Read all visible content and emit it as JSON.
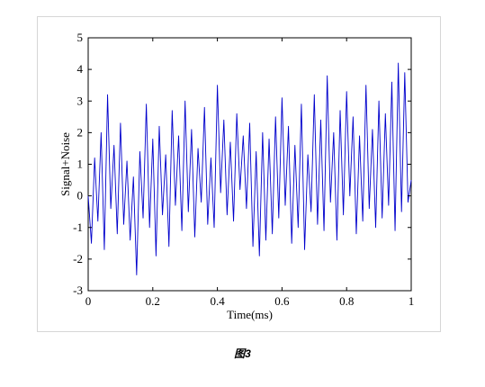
{
  "caption": "图3",
  "chart_data": {
    "type": "line",
    "title": "",
    "xlabel": "Time(ms)",
    "ylabel": "Signal+Noise",
    "xlim": [
      0,
      1
    ],
    "ylim": [
      -3,
      5
    ],
    "xticks": [
      "0",
      "0.2",
      "0.4",
      "0.6",
      "0.8",
      "1"
    ],
    "yticks": [
      "-3",
      "-2",
      "-1",
      "0",
      "1",
      "2",
      "3",
      "4",
      "5"
    ],
    "grid": false,
    "legend": "none",
    "line_color": "#0000cc",
    "series": [
      {
        "x": [
          0,
          0.01,
          0.02,
          0.03,
          0.04,
          0.05,
          0.06,
          0.07,
          0.08,
          0.09,
          0.1,
          0.11,
          0.12,
          0.13,
          0.14,
          0.15,
          0.16,
          0.17,
          0.18,
          0.19,
          0.2,
          0.21,
          0.22,
          0.23,
          0.24,
          0.25,
          0.26,
          0.27,
          0.28,
          0.29,
          0.3,
          0.31,
          0.32,
          0.33,
          0.34,
          0.35,
          0.36,
          0.37,
          0.38,
          0.39,
          0.4,
          0.41,
          0.42,
          0.43,
          0.44,
          0.45,
          0.46,
          0.47,
          0.48,
          0.49,
          0.5,
          0.51,
          0.52,
          0.53,
          0.54,
          0.55,
          0.56,
          0.57,
          0.58,
          0.59,
          0.6,
          0.61,
          0.62,
          0.63,
          0.64,
          0.65,
          0.66,
          0.67,
          0.68,
          0.69,
          0.7,
          0.71,
          0.72,
          0.73,
          0.74,
          0.75,
          0.76,
          0.77,
          0.78,
          0.79,
          0.8,
          0.81,
          0.82,
          0.83,
          0.84,
          0.85,
          0.86,
          0.87,
          0.88,
          0.89,
          0.9,
          0.91,
          0.92,
          0.93,
          0.94,
          0.95,
          0.96,
          0.97,
          0.98,
          0.99,
          1.0
        ],
        "values": [
          0.0,
          -1.5,
          1.2,
          -0.8,
          2.0,
          -1.7,
          3.2,
          -0.4,
          1.6,
          -1.2,
          2.3,
          -0.9,
          1.1,
          -1.4,
          0.6,
          -2.5,
          1.4,
          -0.7,
          2.9,
          -1.0,
          1.8,
          -1.9,
          2.2,
          -0.6,
          1.3,
          -1.6,
          2.7,
          -0.3,
          1.9,
          -1.1,
          3.0,
          -0.5,
          2.1,
          -1.3,
          1.5,
          -0.2,
          2.8,
          -0.9,
          1.2,
          -1.0,
          3.5,
          0.1,
          2.4,
          -0.6,
          1.7,
          -0.8,
          2.6,
          0.2,
          1.9,
          -0.4,
          2.3,
          -1.6,
          1.4,
          -1.9,
          2.0,
          -1.4,
          1.8,
          -1.2,
          2.5,
          -0.7,
          3.1,
          -0.3,
          2.2,
          -1.5,
          1.6,
          -1.0,
          2.9,
          -1.7,
          1.3,
          -0.5,
          3.2,
          -0.9,
          2.4,
          -1.1,
          3.8,
          -0.2,
          2.0,
          -1.4,
          2.7,
          -0.6,
          3.3,
          0.0,
          2.5,
          -1.2,
          1.9,
          -0.8,
          3.5,
          -0.4,
          2.1,
          -1.0,
          3.0,
          -0.7,
          2.6,
          -0.3,
          3.6,
          -1.1,
          4.2,
          -0.5,
          3.9,
          -0.2,
          0.5
        ]
      }
    ]
  }
}
